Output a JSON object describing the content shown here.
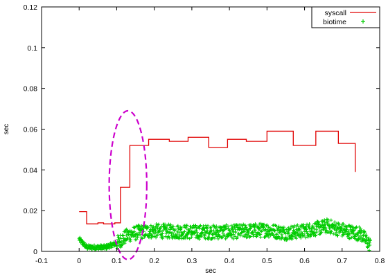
{
  "chart_data": {
    "type": "line",
    "title": "",
    "xlabel": "sec",
    "ylabel": "sec",
    "xlim": [
      -0.1,
      0.8
    ],
    "ylim": [
      0,
      0.12
    ],
    "x_ticks": [
      -0.1,
      0,
      0.1,
      0.2,
      0.3,
      0.4,
      0.5,
      0.6,
      0.7,
      0.8
    ],
    "y_ticks": [
      0,
      0.02,
      0.04,
      0.06,
      0.08,
      0.1,
      0.12
    ],
    "x_tick_labels": [
      "-0.1",
      "0",
      "0.1",
      "0.2",
      "0.3",
      "0.4",
      "0.5",
      "0.6",
      "0.7",
      "0.8"
    ],
    "y_tick_labels": [
      "0",
      "0.02",
      "0.04",
      "0.06",
      "0.08",
      "0.1",
      "0.12"
    ],
    "grid": false,
    "legend_position": "top-right",
    "series": [
      {
        "name": "syscall",
        "style": "step",
        "color": "#e00000",
        "points": [
          [
            0.0,
            0.0195
          ],
          [
            0.02,
            0.0135
          ],
          [
            0.05,
            0.014
          ],
          [
            0.065,
            0.0135
          ],
          [
            0.095,
            0.014
          ],
          [
            0.11,
            0.0315
          ],
          [
            0.135,
            0.052
          ],
          [
            0.185,
            0.055
          ],
          [
            0.24,
            0.054
          ],
          [
            0.29,
            0.056
          ],
          [
            0.345,
            0.051
          ],
          [
            0.395,
            0.055
          ],
          [
            0.445,
            0.054
          ],
          [
            0.5,
            0.059
          ],
          [
            0.57,
            0.052
          ],
          [
            0.63,
            0.059
          ],
          [
            0.69,
            0.053
          ],
          [
            0.735,
            0.039
          ]
        ]
      },
      {
        "name": "biotime",
        "style": "points",
        "marker": "+",
        "color": "#00cc00",
        "x_range": [
          0.0,
          0.775
        ],
        "profile": [
          [
            0.0,
            0.006
          ],
          [
            0.02,
            0.002
          ],
          [
            0.07,
            0.002
          ],
          [
            0.1,
            0.004
          ],
          [
            0.13,
            0.008
          ],
          [
            0.16,
            0.0095
          ],
          [
            0.2,
            0.01
          ],
          [
            0.3,
            0.0095
          ],
          [
            0.4,
            0.0095
          ],
          [
            0.5,
            0.0105
          ],
          [
            0.55,
            0.009
          ],
          [
            0.6,
            0.01
          ],
          [
            0.64,
            0.0115
          ],
          [
            0.66,
            0.0125
          ],
          [
            0.7,
            0.0105
          ],
          [
            0.75,
            0.0085
          ],
          [
            0.775,
            0.003
          ]
        ],
        "spread": 0.0035
      }
    ]
  },
  "annotations": [
    {
      "shape": "ellipse",
      "style": "dashed",
      "color": "#cc00cc",
      "center": [
        0.13,
        0.0325
      ],
      "radius_x": 0.05,
      "radius_y": 0.0365
    }
  ]
}
